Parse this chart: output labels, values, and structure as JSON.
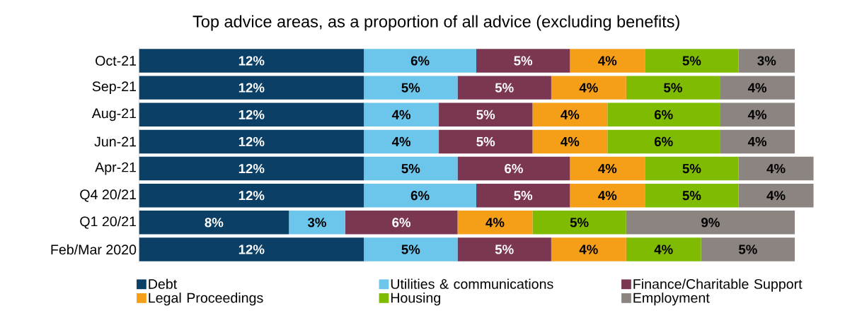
{
  "chart_data": {
    "type": "bar",
    "orientation": "horizontal",
    "stacked": true,
    "title": "Top advice areas, as a proportion of all advice (excluding benefits)",
    "categories": [
      "Oct-21",
      "Sep-21",
      "Aug-21",
      "Jun-21",
      "Apr-21",
      "Q4 20/21",
      "Q1 20/21",
      "Feb/Mar 2020"
    ],
    "legend": "bottom",
    "series": [
      {
        "name": "Debt",
        "color": "#0b3f66",
        "values": [
          12,
          12,
          12,
          12,
          12,
          12,
          8,
          12
        ],
        "value_labels": [
          "12%",
          "12%",
          "12%",
          "12%",
          "12%",
          "12%",
          "8%",
          "12%"
        ]
      },
      {
        "name": "Utilities & communications",
        "color": "#6cc5ea",
        "values": [
          6,
          5,
          4,
          4,
          5,
          6,
          3,
          5
        ],
        "value_labels": [
          "6%",
          "5%",
          "4%",
          "4%",
          "5%",
          "6%",
          "3%",
          "5%"
        ]
      },
      {
        "name": "Finance/Charitable Support",
        "color": "#7b3651",
        "values": [
          5,
          5,
          5,
          5,
          6,
          5,
          6,
          5
        ],
        "value_labels": [
          "5%",
          "5%",
          "5%",
          "5%",
          "6%",
          "5%",
          "6%",
          "5%"
        ]
      },
      {
        "name": "Legal Proceedings",
        "color": "#f59f18",
        "values": [
          4,
          4,
          4,
          4,
          4,
          4,
          4,
          4
        ],
        "value_labels": [
          "4%",
          "4%",
          "4%",
          "4%",
          "4%",
          "4%",
          "4%",
          "4%"
        ]
      },
      {
        "name": "Housing",
        "color": "#7fbb00",
        "values": [
          5,
          5,
          6,
          6,
          5,
          5,
          5,
          4
        ],
        "value_labels": [
          "5%",
          "5%",
          "6%",
          "6%",
          "5%",
          "5%",
          "5%",
          "4%"
        ]
      },
      {
        "name": "Employment",
        "color": "#8c8480",
        "values": [
          3,
          4,
          4,
          4,
          4,
          4,
          9,
          5
        ],
        "value_labels": [
          "3%",
          "4%",
          "4%",
          "4%",
          "4%",
          "4%",
          "9%",
          "5%"
        ]
      }
    ]
  }
}
